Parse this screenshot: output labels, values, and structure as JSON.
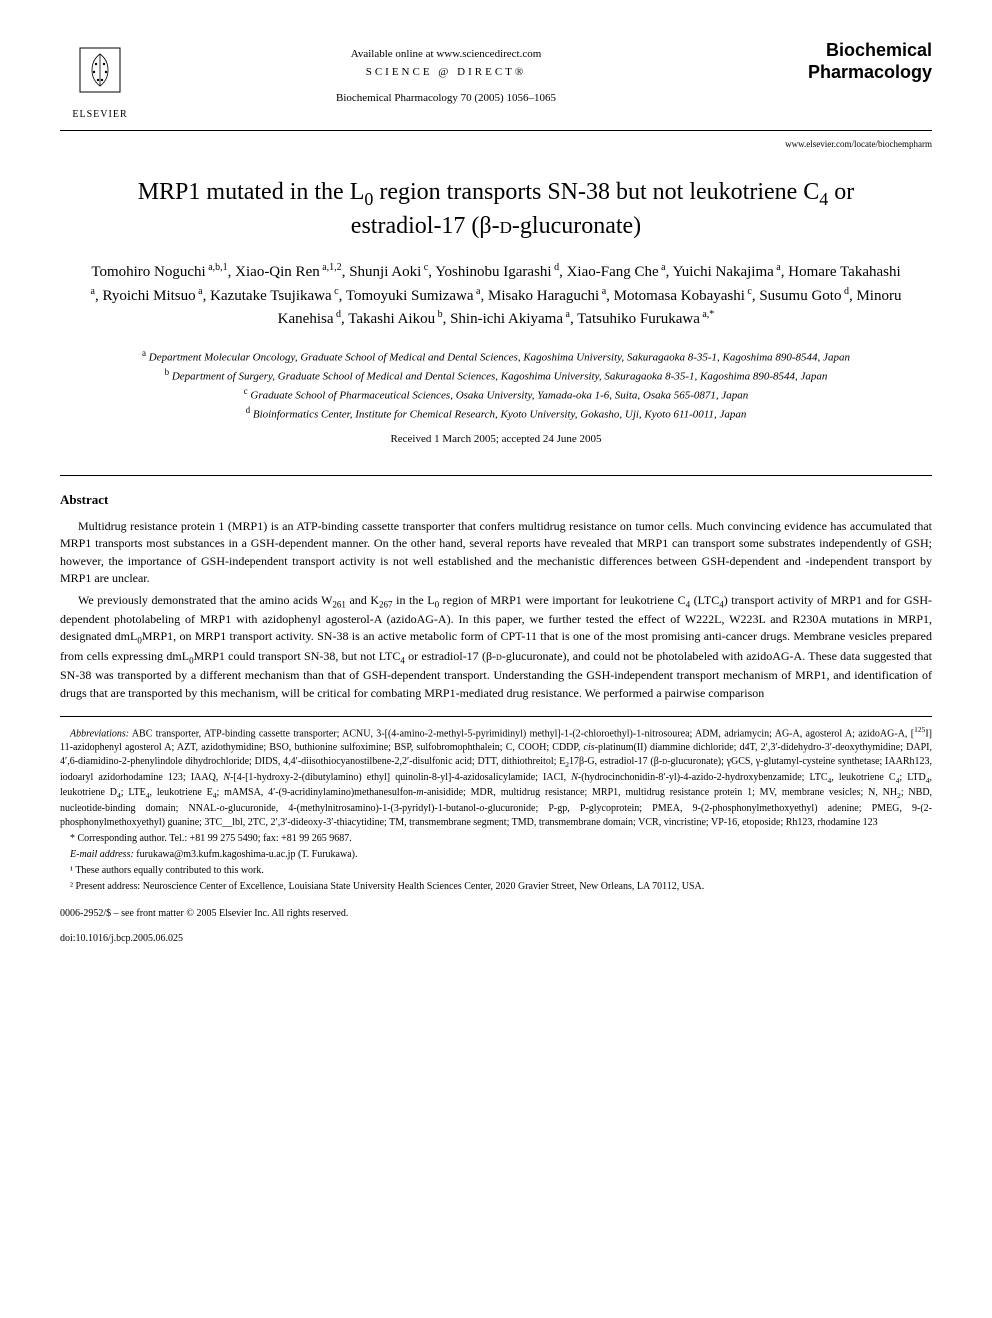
{
  "header": {
    "publisher_name": "ELSEVIER",
    "available_online": "Available online at www.sciencedirect.com",
    "sciencedirect_label": "SCIENCE @ DIRECT®",
    "journal_ref": "Biochemical Pharmacology 70 (2005) 1056–1065",
    "journal_title_line1": "Biochemical",
    "journal_title_line2": "Pharmacology",
    "journal_url": "www.elsevier.com/locate/biochempharm"
  },
  "article": {
    "title_html": "MRP1 mutated in the L<sub>0</sub> region transports SN-38 but not leukotriene C<sub>4</sub> or estradiol-17 (β-<span style='font-variant:small-caps'>d</span>-glucuronate)",
    "authors_html": "Tomohiro Noguchi<sup> a,b,1</sup>, Xiao-Qin Ren<sup> a,1,2</sup>, Shunji Aoki<sup> c</sup>, Yoshinobu Igarashi<sup> d</sup>, Xiao-Fang Che<sup> a</sup>, Yuichi Nakajima<sup> a</sup>, Homare Takahashi<sup> a</sup>, Ryoichi Mitsuo<sup> a</sup>, Kazutake Tsujikawa<sup> c</sup>, Tomoyuki Sumizawa<sup> a</sup>, Misako Haraguchi<sup> a</sup>, Motomasa Kobayashi<sup> c</sup>, Susumu Goto<sup> d</sup>, Minoru Kanehisa<sup> d</sup>, Takashi Aikou<sup> b</sup>, Shin-ichi Akiyama<sup> a</sup>, Tatsuhiko Furukawa<sup> a,*</sup>",
    "affiliations_html": "<sup>a</sup> Department Molecular Oncology, Graduate School of Medical and Dental Sciences, Kagoshima University, Sakuragaoka 8-35-1, Kagoshima 890-8544, Japan<br><sup>b</sup> Department of Surgery, Graduate School of Medical and Dental Sciences, Kagoshima University, Sakuragaoka 8-35-1, Kagoshima 890-8544, Japan<br><sup>c</sup> Graduate School of Pharmaceutical Sciences, Osaka University, Yamada-oka 1-6, Suita, Osaka 565-0871, Japan<br><sup>d</sup> Bioinformatics Center, Institute for Chemical Research, Kyoto University, Gokasho, Uji, Kyoto 611-0011, Japan",
    "received": "Received 1 March 2005; accepted 24 June 2005"
  },
  "abstract": {
    "heading": "Abstract",
    "para1": "Multidrug resistance protein 1 (MRP1) is an ATP-binding cassette transporter that confers multidrug resistance on tumor cells. Much convincing evidence has accumulated that MRP1 transports most substances in a GSH-dependent manner. On the other hand, several reports have revealed that MRP1 can transport some substrates independently of GSH; however, the importance of GSH-independent transport activity is not well established and the mechanistic differences between GSH-dependent and -independent transport by MRP1 are unclear.",
    "para2_html": "We previously demonstrated that the amino acids W<sub>261</sub> and K<sub>267</sub> in the L<sub>0</sub> region of MRP1 were important for leukotriene C<sub>4</sub> (LTC<sub>4</sub>) transport activity of MRP1 and for GSH-dependent photolabeling of MRP1 with azidophenyl agosterol-A (azidoAG-A). In this paper, we further tested the effect of W222L, W223L and R230A mutations in MRP1, designated dmL<sub>0</sub>MRP1, on MRP1 transport activity. SN-38 is an active metabolic form of CPT-11 that is one of the most promising anti-cancer drugs. Membrane vesicles prepared from cells expressing dmL<sub>0</sub>MRP1 could transport SN-38, but not LTC<sub>4</sub> or estradiol-17 (β-<span style='font-variant:small-caps'>d</span>-glucuronate), and could not be photolabeled with azidoAG-A. These data suggested that SN-38 was transported by a different mechanism than that of GSH-dependent transport. Understanding the GSH-independent transport mechanism of MRP1, and identification of drugs that are transported by this mechanism, will be critical for combating MRP1-mediated drug resistance. We performed a pairwise comparison"
  },
  "footnotes": {
    "abbrev_html": "<em>Abbreviations:</em> ABC transporter, ATP-binding cassette transporter; ACNU, 3-[(4-amino-2-methyl-5-pyrimidinyl) methyl]-1-(2-chloroethyl)-1-nitrosourea; ADM, adriamycin; AG-A, agosterol A; azidoAG-A, [<sup>125</sup>I] 11-azidophenyl agosterol A; AZT, azidothymidine; BSO, buthionine sulfoximine; BSP, sulfobromophthalein; C, COOH; CDDP, <em>cis</em>-platinum(II) diammine dichloride; d4T, 2′,3′-didehydro-3′-deoxythymidine; DAPI, 4′,6-diamidino-2-phenylindole dihydrochloride; DIDS, 4,4′-diisothiocyanostilbene-2,2′-disulfonic acid; DTT, dithiothreitol; E<sub>2</sub>17β-G, estradiol-17 (β-<span style='font-variant:small-caps'>d</span>-glucuronate); γGCS, γ-glutamyl-cysteine synthetase; IAARh123, iodoaryl azidorhodamine 123; IAAQ, <em>N</em>-[4-[1-hydroxy-2-(dibutylamino) ethyl] quinolin-8-yl]-4-azidosalicylamide; IACI, <em>N</em>-(hydrocinchonidin-8′-yl)-4-azido-2-hydroxybenzamide; LTC<sub>4</sub>, leukotriene C<sub>4</sub>; LTD<sub>4</sub>, leukotriene D<sub>4</sub>; LTE<sub>4</sub>, leukotriene E<sub>4</sub>; mAMSA, 4′-(9-acridinylamino)methanesulfon-<em>m</em>-anisidide; MDR, multidrug resistance; MRP1, multidrug resistance protein 1; MV, membrane vesicles; N, NH<sub>2</sub>; NBD, nucleotide-binding domain; NNAL-<em>o</em>-glucuronide, 4-(methylnitrosamino)-1-(3-pyridyl)-1-butanol-<em>o</em>-glucuronide; P-gp, P-glycoprotein; PMEA, 9-(2-phosphonylmethoxyethyl) adenine; PMEG, 9-(2-phosphonylmethoxyethyl) guanine; 3TC__lbl, 2TC, 2′,3′-dideoxy-3′-thiacytidine; TM, transmembrane segment; TMD, transmembrane domain; VCR, vincristine; VP-16, etoposide; Rh123, rhodamine 123",
    "corresponding": "* Corresponding author. Tel.: +81 99 275 5490; fax: +81 99 265 9687.",
    "email_html": "<em>E-mail address:</em> furukawa@m3.kufm.kagoshima-u.ac.jp (T. Furukawa).",
    "note1": "¹ These authors equally contributed to this work.",
    "note2": "² Present address: Neuroscience Center of Excellence, Louisiana State University Health Sciences Center, 2020 Gravier Street, New Orleans, LA 70112, USA."
  },
  "footer": {
    "copyright": "0006-2952/$ – see front matter © 2005 Elsevier Inc. All rights reserved.",
    "doi": "doi:10.1016/j.bcp.2005.06.025"
  },
  "colors": {
    "text": "#000000",
    "bg": "#ffffff",
    "rule": "#000000"
  },
  "typography": {
    "body_font": "Georgia, Times New Roman, serif",
    "title_size_pt": 18,
    "author_size_pt": 12,
    "abstract_size_pt": 9,
    "footnote_size_pt": 7.5
  }
}
